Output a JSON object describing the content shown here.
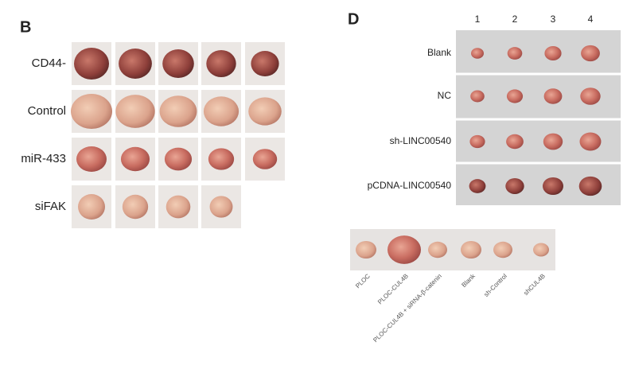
{
  "panel_b": {
    "letter": "B",
    "rows": [
      "CD44-",
      "Control",
      "miR-433",
      "siFAK"
    ]
  },
  "panel_d": {
    "letter": "D",
    "columns": [
      "1",
      "2",
      "3",
      "4"
    ],
    "rows": [
      "Blank",
      "NC",
      "sh-LINC00540",
      "pCDNA-LINC00540"
    ],
    "bottom_labels": [
      "PLOC",
      "PLOC-CUL4B",
      "PLOC-CUL4B + siRNA-β-catenin",
      "Blank",
      "sh-Control",
      "shCUL4B"
    ]
  }
}
